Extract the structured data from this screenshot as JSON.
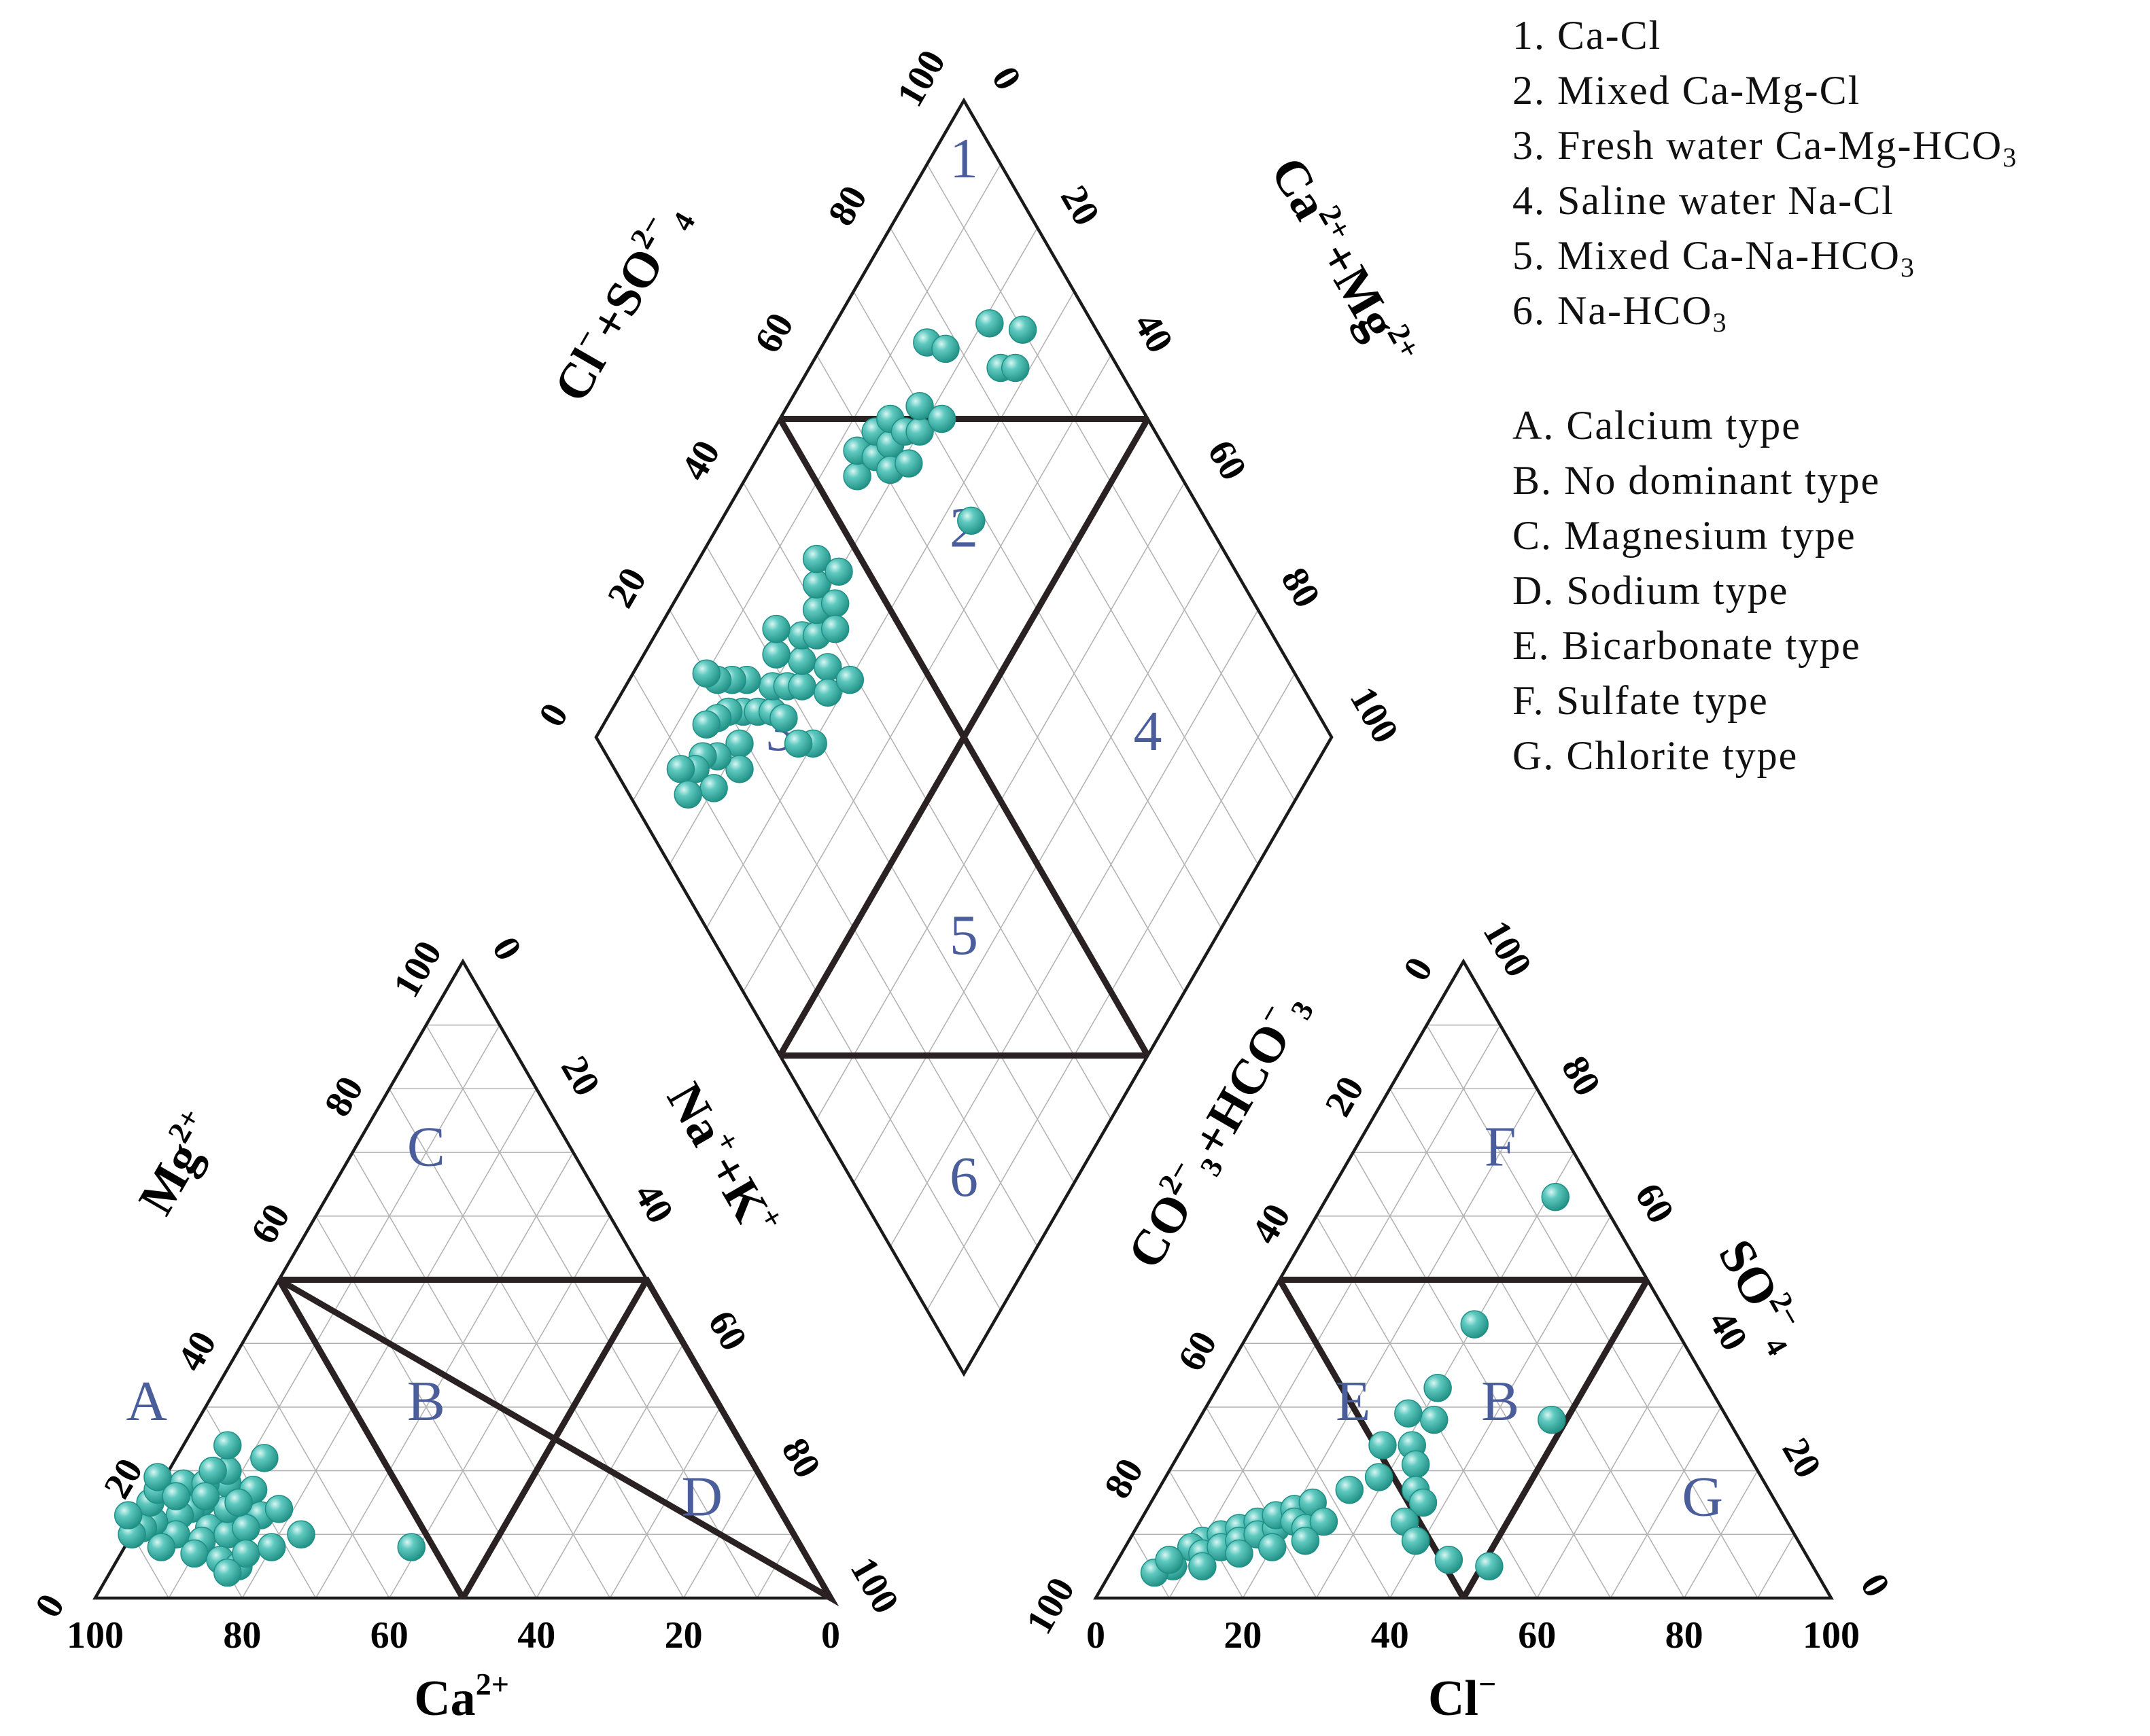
{
  "chart_data": {
    "type": "scatter",
    "subtype": "piper-diagram",
    "point_color": "#3fb8ae",
    "grid": true,
    "legend": {
      "position": "top-right",
      "water_types": [
        {
          "num": "1.",
          "label": "Ca-Cl",
          "sub": ""
        },
        {
          "num": "2.",
          "label": "Mixed Ca-Mg-Cl",
          "sub": ""
        },
        {
          "num": "3.",
          "label": "Fresh water Ca-Mg-HCO",
          "sub": "3"
        },
        {
          "num": "4.",
          "label": "Saline water Na-Cl",
          "sub": ""
        },
        {
          "num": "5.",
          "label": "Mixed Ca-Na-HCO",
          "sub": "3"
        },
        {
          "num": "6.",
          "label": "Na-HCO",
          "sub": "3"
        }
      ],
      "hydro_types": [
        {
          "num": "A.",
          "label": "Calcium type"
        },
        {
          "num": "B.",
          "label": "No dominant type"
        },
        {
          "num": "C.",
          "label": "Magnesium type"
        },
        {
          "num": "D.",
          "label": "Sodium type"
        },
        {
          "num": "E.",
          "label": "Bicarbonate type"
        },
        {
          "num": "F.",
          "label": "Sulfate type"
        },
        {
          "num": "G.",
          "label": "Chlorite type"
        }
      ]
    },
    "ticks": {
      "values": [
        "0",
        "20",
        "40",
        "60",
        "80",
        "100"
      ],
      "range": [
        0,
        100
      ]
    },
    "cation_triangle": {
      "axes": {
        "ca": {
          "base": "Ca",
          "sup": "2+"
        },
        "mg": {
          "base": "Mg",
          "sup": "2+"
        }
      },
      "regions": [
        {
          "label": "A",
          "ca": 78,
          "mg": 30
        },
        {
          "label": "B",
          "ca": 40,
          "mg": 30
        },
        {
          "label": "C",
          "ca": 20,
          "mg": 70
        },
        {
          "label": "D",
          "ca": 10,
          "mg": 15
        }
      ],
      "points": [
        {
          "ca": 78,
          "mg": 15
        },
        {
          "ca": 80,
          "mg": 14
        },
        {
          "ca": 82,
          "mg": 13
        },
        {
          "ca": 76,
          "mg": 12
        },
        {
          "ca": 79,
          "mg": 11
        },
        {
          "ca": 84,
          "mg": 10
        },
        {
          "ca": 81,
          "mg": 9
        },
        {
          "ca": 77,
          "mg": 10
        },
        {
          "ca": 75,
          "mg": 14
        },
        {
          "ca": 73,
          "mg": 18
        },
        {
          "ca": 72,
          "mg": 20
        },
        {
          "ca": 70,
          "mg": 17
        },
        {
          "ca": 71,
          "mg": 13
        },
        {
          "ca": 74,
          "mg": 11
        },
        {
          "ca": 86,
          "mg": 12
        },
        {
          "ca": 88,
          "mg": 11
        },
        {
          "ca": 90,
          "mg": 10
        },
        {
          "ca": 87,
          "mg": 8
        },
        {
          "ca": 83,
          "mg": 7
        },
        {
          "ca": 80,
          "mg": 6
        },
        {
          "ca": 78,
          "mg": 5
        },
        {
          "ca": 76,
          "mg": 7
        },
        {
          "ca": 85,
          "mg": 15
        },
        {
          "ca": 83,
          "mg": 17
        },
        {
          "ca": 79,
          "mg": 18
        },
        {
          "ca": 76,
          "mg": 18
        },
        {
          "ca": 74,
          "mg": 20
        },
        {
          "ca": 70,
          "mg": 24
        },
        {
          "ca": 66,
          "mg": 22
        },
        {
          "ca": 68,
          "mg": 14
        },
        {
          "ca": 67,
          "mg": 10
        },
        {
          "ca": 72,
          "mg": 8
        },
        {
          "ca": 80,
          "mg": 4
        },
        {
          "ca": 82,
          "mg": 19
        },
        {
          "ca": 77,
          "mg": 16
        },
        {
          "ca": 81,
          "mg": 16
        },
        {
          "ca": 89,
          "mg": 13
        },
        {
          "ca": 73,
          "mg": 15
        },
        {
          "ca": 53,
          "mg": 8
        }
      ]
    },
    "anion_triangle": {
      "axes": {
        "cl": {
          "base": "Cl",
          "sup": "−"
        },
        "so4": {
          "base": "SO",
          "sub": "4",
          "sup": "2−"
        }
      },
      "regions": [
        {
          "label": "E",
          "cl": 20,
          "so4": 30
        },
        {
          "label": "B",
          "cl": 40,
          "so4": 30
        },
        {
          "label": "F",
          "cl": 20,
          "so4": 70
        },
        {
          "label": "G",
          "cl": 75,
          "so4": 15
        }
      ],
      "points": [
        {
          "cl": 10,
          "so4": 9
        },
        {
          "cl": 12,
          "so4": 10
        },
        {
          "cl": 14,
          "so4": 11
        },
        {
          "cl": 16,
          "so4": 12
        },
        {
          "cl": 9,
          "so4": 8
        },
        {
          "cl": 11,
          "so4": 7
        },
        {
          "cl": 13,
          "so4": 8
        },
        {
          "cl": 15,
          "so4": 9
        },
        {
          "cl": 17,
          "so4": 10
        },
        {
          "cl": 19,
          "so4": 11
        },
        {
          "cl": 18,
          "so4": 13
        },
        {
          "cl": 20,
          "so4": 14
        },
        {
          "cl": 22,
          "so4": 15
        },
        {
          "cl": 21,
          "so4": 12
        },
        {
          "cl": 23,
          "so4": 11
        },
        {
          "cl": 25,
          "so4": 12
        },
        {
          "cl": 24,
          "so4": 9
        },
        {
          "cl": 20,
          "so4": 8
        },
        {
          "cl": 16,
          "so4": 7
        },
        {
          "cl": 12,
          "so4": 5
        },
        {
          "cl": 8,
          "so4": 5
        },
        {
          "cl": 6,
          "so4": 4
        },
        {
          "cl": 7,
          "so4": 6
        },
        {
          "cl": 26,
          "so4": 17
        },
        {
          "cl": 29,
          "so4": 19
        },
        {
          "cl": 31,
          "so4": 24
        },
        {
          "cl": 32,
          "so4": 28
        },
        {
          "cl": 30,
          "so4": 33
        },
        {
          "cl": 28,
          "so4": 29
        },
        {
          "cl": 33,
          "so4": 21
        },
        {
          "cl": 35,
          "so4": 17
        },
        {
          "cl": 37,
          "so4": 15
        },
        {
          "cl": 36,
          "so4": 12
        },
        {
          "cl": 39,
          "so4": 9
        },
        {
          "cl": 27,
          "so4": 24
        },
        {
          "cl": 45,
          "so4": 6
        },
        {
          "cl": 51,
          "so4": 5
        },
        {
          "cl": 48,
          "so4": 28
        },
        {
          "cl": 30,
          "so4": 43
        },
        {
          "cl": 31,
          "so4": 63
        }
      ]
    },
    "diamond": {
      "axes": {
        "cl_so4": {
          "parts": [
            {
              "base": "Cl",
              "sup": "−"
            },
            {
              "base": "+SO",
              "sub": "4",
              "sup": "2−"
            }
          ]
        },
        "ca_mg": {
          "parts": [
            {
              "base": "Ca",
              "sup": "2+"
            },
            {
              "base": "+Mg",
              "sup": "2+"
            }
          ]
        },
        "na_k": {
          "parts": [
            {
              "base": "Na",
              "sup": "+"
            },
            {
              "base": "+K",
              "sup": "+"
            }
          ]
        },
        "co3_hco3": {
          "parts": [
            {
              "base": "CO",
              "sub": "3",
              "sup": "2−"
            },
            {
              "base": "+HCO",
              "sub": "3",
              "sup": "−"
            }
          ]
        }
      },
      "regions": [
        {
          "label": "1",
          "clso4": 75,
          "camg": 75
        },
        {
          "label": "2",
          "clso4": 55,
          "camg": 55
        },
        {
          "label": "3",
          "clso4": 25,
          "camg": 75
        },
        {
          "label": "4",
          "clso4": 75,
          "camg": 25
        },
        {
          "label": "5",
          "clso4": 25,
          "camg": 25
        },
        {
          "label": "6",
          "clso4": 25,
          "camg": 0
        }
      ],
      "points": [
        {
          "clso4": 22,
          "camg": 82
        },
        {
          "clso4": 20,
          "camg": 84
        },
        {
          "clso4": 24,
          "camg": 80
        },
        {
          "clso4": 26,
          "camg": 78
        },
        {
          "clso4": 18,
          "camg": 85
        },
        {
          "clso4": 28,
          "camg": 80
        },
        {
          "clso4": 30,
          "camg": 78
        },
        {
          "clso4": 25,
          "camg": 84
        },
        {
          "clso4": 23,
          "camg": 86
        },
        {
          "clso4": 21,
          "camg": 88
        },
        {
          "clso4": 32,
          "camg": 76
        },
        {
          "clso4": 34,
          "camg": 78
        },
        {
          "clso4": 27,
          "camg": 76
        },
        {
          "clso4": 19,
          "camg": 80
        },
        {
          "clso4": 17,
          "camg": 78
        },
        {
          "clso4": 15,
          "camg": 82
        },
        {
          "clso4": 13,
          "camg": 84
        },
        {
          "clso4": 16,
          "camg": 86
        },
        {
          "clso4": 20,
          "camg": 90
        },
        {
          "clso4": 31,
          "camg": 82
        },
        {
          "clso4": 36,
          "camg": 80
        },
        {
          "clso4": 38,
          "camg": 78
        },
        {
          "clso4": 40,
          "camg": 80
        },
        {
          "clso4": 33,
          "camg": 84
        },
        {
          "clso4": 42,
          "camg": 82
        },
        {
          "clso4": 44,
          "camg": 84
        },
        {
          "clso4": 46,
          "camg": 80
        },
        {
          "clso4": 43,
          "camg": 78
        },
        {
          "clso4": 41,
          "camg": 76
        },
        {
          "clso4": 37,
          "camg": 74
        },
        {
          "clso4": 35,
          "camg": 72
        },
        {
          "clso4": 39,
          "camg": 70
        },
        {
          "clso4": 29,
          "camg": 70
        },
        {
          "clso4": 27,
          "camg": 72
        },
        {
          "clso4": 56,
          "camg": 85
        },
        {
          "clso4": 58,
          "camg": 87
        },
        {
          "clso4": 60,
          "camg": 84
        },
        {
          "clso4": 62,
          "camg": 86
        },
        {
          "clso4": 63,
          "camg": 83
        },
        {
          "clso4": 65,
          "camg": 85
        },
        {
          "clso4": 61,
          "camg": 81
        },
        {
          "clso4": 66,
          "camg": 82
        },
        {
          "clso4": 68,
          "camg": 80
        },
        {
          "clso4": 70,
          "camg": 82
        },
        {
          "clso4": 64,
          "camg": 79
        },
        {
          "clso4": 72,
          "camg": 78
        },
        {
          "clso4": 76,
          "camg": 86
        },
        {
          "clso4": 78,
          "camg": 83
        },
        {
          "clso4": 86,
          "camg": 79
        },
        {
          "clso4": 84,
          "camg": 74
        },
        {
          "clso4": 68,
          "camg": 66
        },
        {
          "clso4": 86,
          "camg": 72
        },
        {
          "clso4": 90,
          "camg": 74
        },
        {
          "clso4": 11,
          "camg": 84
        },
        {
          "clso4": 9,
          "camg": 86
        },
        {
          "clso4": 12,
          "camg": 80
        },
        {
          "clso4": 8,
          "camg": 83
        }
      ]
    }
  }
}
